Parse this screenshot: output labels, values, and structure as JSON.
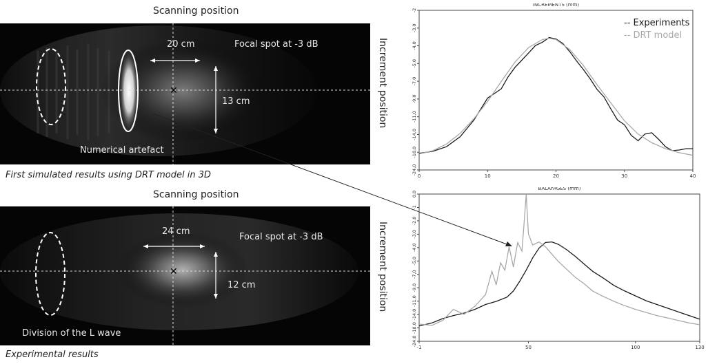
{
  "left": {
    "top_panel": {
      "header": "Scanning position",
      "side_label": "Increment position",
      "focal_text": "Focal spot at -3 dB",
      "width_text": "20 cm",
      "height_text": "13 cm",
      "artefact_text": "Numerical artefact",
      "caption": "First simulated results using DRT model in 3D"
    },
    "bottom_panel": {
      "header": "Scanning position",
      "side_label": "Increment position",
      "focal_text": "Focal spot at -3 dB",
      "width_text": "24 cm",
      "height_text": "12 cm",
      "division_text": "Division of the L wave",
      "caption": "Experimental results"
    }
  },
  "colors": {
    "experiments": "#1a1a1a",
    "drt_model": "#a8a8a8",
    "panel_bg": "#050505"
  },
  "chart_data": [
    {
      "type": "line",
      "title": "INCREMENTS (mm)",
      "xlim": [
        0,
        40
      ],
      "x_ticks": [
        "0",
        "10",
        "20",
        "30",
        "40"
      ],
      "y_ticks": [
        "-24,0",
        "-18,0",
        "-14,0",
        "-11,0",
        "-9,0",
        "-7,0",
        "-5,0",
        "-4,0",
        "-3,0",
        "-2"
      ],
      "ylim": [
        -24,
        0
      ],
      "legend": [
        "-- Experiments",
        "-- DRT model"
      ],
      "legend_position": "top-right",
      "series": [
        {
          "name": "-- Experiments",
          "x": [
            0,
            2,
            4,
            6,
            8,
            10,
            12,
            13,
            14,
            15,
            16,
            17,
            18,
            19,
            20,
            21,
            22,
            23,
            24,
            25,
            26,
            27,
            28,
            29,
            30,
            31,
            32,
            33,
            34,
            35,
            36,
            37,
            38,
            39,
            40
          ],
          "y": [
            -21.5,
            -21.2,
            -20.5,
            -19.0,
            -16.5,
            -13.2,
            -11.8,
            -10.0,
            -8.6,
            -7.5,
            -6.4,
            -5.3,
            -4.8,
            -4.1,
            -4.3,
            -5.0,
            -6.2,
            -7.6,
            -8.9,
            -10.3,
            -11.9,
            -13.0,
            -14.8,
            -16.5,
            -17.2,
            -18.8,
            -19.6,
            -18.6,
            -18.4,
            -19.4,
            -20.5,
            -21.1,
            -21.0,
            -20.8,
            -20.8
          ]
        },
        {
          "name": "-- DRT model",
          "x": [
            0,
            2,
            4,
            6,
            8,
            10,
            12,
            14,
            16,
            18,
            19,
            20,
            22,
            24,
            26,
            28,
            30,
            32,
            34,
            36,
            38,
            40
          ],
          "y": [
            -21.6,
            -21.1,
            -20.1,
            -18.5,
            -16.3,
            -13.7,
            -10.7,
            -7.8,
            -5.6,
            -4.4,
            -4.2,
            -4.4,
            -5.9,
            -8.3,
            -11.2,
            -13.9,
            -16.6,
            -18.6,
            -19.9,
            -20.8,
            -21.4,
            -21.8
          ]
        }
      ]
    },
    {
      "type": "line",
      "title": "BALAYAGES (mm)",
      "xlim": [
        -1,
        130
      ],
      "x_ticks": [
        "-1",
        "50",
        "100",
        "130"
      ],
      "y_ticks": [
        "-24,0",
        "-18,0",
        "-14,0",
        "-11,0",
        "-9,0",
        "-7,0",
        "-5,0",
        "-4,0",
        "-3,0",
        "-2,0",
        "-1",
        "0,0"
      ],
      "ylim": [
        -24,
        0
      ],
      "series": [
        {
          "name": "Experiments",
          "x": [
            -1,
            5,
            10,
            15,
            20,
            25,
            30,
            35,
            40,
            43,
            46,
            49,
            52,
            55,
            58,
            61,
            64,
            68,
            72,
            76,
            80,
            85,
            90,
            95,
            100,
            105,
            110,
            115,
            120,
            125,
            130
          ],
          "y": [
            -21.5,
            -21.0,
            -20.3,
            -19.8,
            -19.4,
            -18.8,
            -18.0,
            -17.5,
            -16.8,
            -15.8,
            -14.2,
            -12.4,
            -10.4,
            -8.8,
            -7.9,
            -7.8,
            -8.2,
            -9.1,
            -10.2,
            -11.4,
            -12.6,
            -13.7,
            -14.9,
            -15.8,
            -16.6,
            -17.4,
            -18.0,
            -18.6,
            -19.2,
            -19.8,
            -20.4
          ]
        },
        {
          "name": "DRT model",
          "x": [
            -1,
            5,
            10,
            15,
            20,
            25,
            30,
            33,
            35,
            37,
            39,
            41,
            43,
            45,
            47,
            48,
            49,
            50,
            52,
            55,
            58,
            61,
            64,
            68,
            72,
            76,
            80,
            85,
            90,
            95,
            100,
            105,
            110,
            115,
            120,
            125,
            130
          ],
          "y": [
            -21.2,
            -21.4,
            -20.6,
            -18.8,
            -19.6,
            -18.3,
            -16.4,
            -12.6,
            -14.8,
            -11.2,
            -12.4,
            -8.6,
            -11.9,
            -7.9,
            -9.3,
            -4.8,
            0.0,
            -6.5,
            -8.3,
            -7.8,
            -8.6,
            -9.8,
            -11.0,
            -12.3,
            -13.6,
            -14.6,
            -15.8,
            -16.7,
            -17.5,
            -18.2,
            -18.8,
            -19.3,
            -19.8,
            -20.2,
            -20.6,
            -21.0,
            -21.3
          ]
        }
      ]
    }
  ]
}
